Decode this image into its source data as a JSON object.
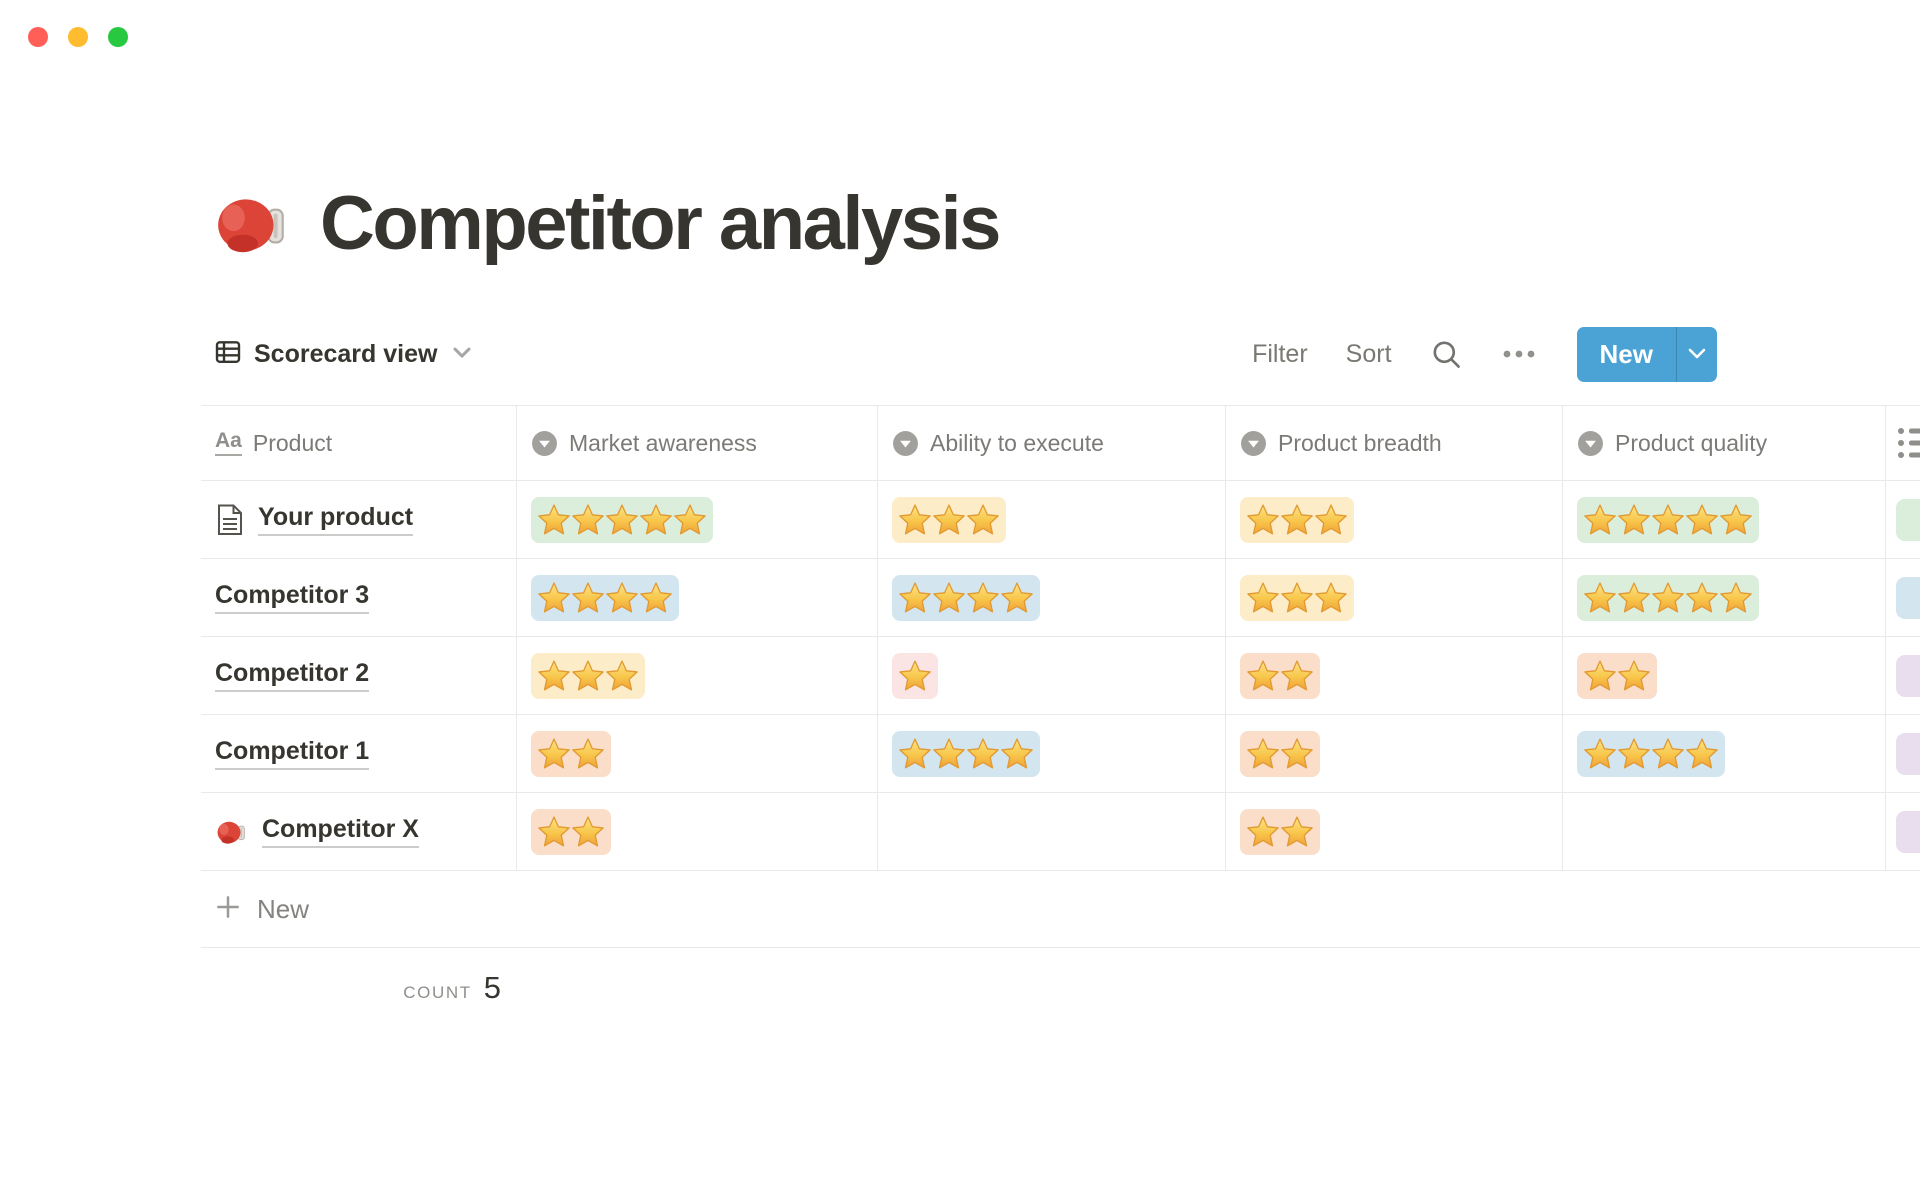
{
  "window": {
    "traffic_lights": [
      {
        "name": "close",
        "color": "#FF5F57"
      },
      {
        "name": "minimize",
        "color": "#FEBC2E"
      },
      {
        "name": "zoom",
        "color": "#28C840"
      }
    ]
  },
  "page": {
    "icon": "boxing-glove",
    "title": "Competitor analysis"
  },
  "toolbar": {
    "view": {
      "icon": "table-view",
      "label": "Scorecard view"
    },
    "filter_label": "Filter",
    "sort_label": "Sort",
    "search_icon": "magnifier",
    "more_icon": "ellipsis",
    "new_button": {
      "label": "New",
      "color": "#4AA2D5"
    }
  },
  "table": {
    "columns": [
      {
        "label": "Product",
        "icon": "title-field"
      },
      {
        "label": "Market awareness",
        "icon": "select-field"
      },
      {
        "label": "Ability to execute",
        "icon": "select-field"
      },
      {
        "label": "Product breadth",
        "icon": "select-field"
      },
      {
        "label": "Product quality",
        "icon": "select-field"
      },
      {
        "label": "",
        "icon": "bulleted-list"
      }
    ],
    "rows": [
      {
        "icon": "document",
        "name": "Your product",
        "ratings": [
          {
            "stars": 5,
            "bg": "green"
          },
          {
            "stars": 3,
            "bg": "yellow"
          },
          {
            "stars": 3,
            "bg": "yellow"
          },
          {
            "stars": 5,
            "bg": "green"
          }
        ],
        "edge_tag_bg": "green"
      },
      {
        "icon": null,
        "name": "Competitor 3",
        "ratings": [
          {
            "stars": 4,
            "bg": "blue"
          },
          {
            "stars": 4,
            "bg": "blue"
          },
          {
            "stars": 3,
            "bg": "yellow"
          },
          {
            "stars": 5,
            "bg": "green"
          }
        ],
        "edge_tag_bg": "blue"
      },
      {
        "icon": null,
        "name": "Competitor 2",
        "ratings": [
          {
            "stars": 3,
            "bg": "yellow"
          },
          {
            "stars": 1,
            "bg": "red"
          },
          {
            "stars": 2,
            "bg": "orange"
          },
          {
            "stars": 2,
            "bg": "orange"
          }
        ],
        "edge_tag_bg": "purple"
      },
      {
        "icon": null,
        "name": "Competitor 1",
        "ratings": [
          {
            "stars": 2,
            "bg": "orange"
          },
          {
            "stars": 4,
            "bg": "blue"
          },
          {
            "stars": 2,
            "bg": "orange"
          },
          {
            "stars": 4,
            "bg": "blue"
          }
        ],
        "edge_tag_bg": "purple"
      },
      {
        "icon": "boxing-glove",
        "name": "Competitor X",
        "ratings": [
          {
            "stars": 2,
            "bg": "orange"
          },
          null,
          {
            "stars": 2,
            "bg": "orange"
          },
          null
        ],
        "edge_tag_bg": "purple"
      }
    ],
    "new_row_label": "New",
    "footer": {
      "count_label": "COUNT",
      "count_value": "5"
    }
  },
  "pill_colors": {
    "green": "#DBEDDB",
    "yellow": "#FDECC8",
    "blue": "#D3E5EF",
    "orange": "#FADEC9",
    "red": "#FBE4E4",
    "purple": "#E8DEEE"
  }
}
